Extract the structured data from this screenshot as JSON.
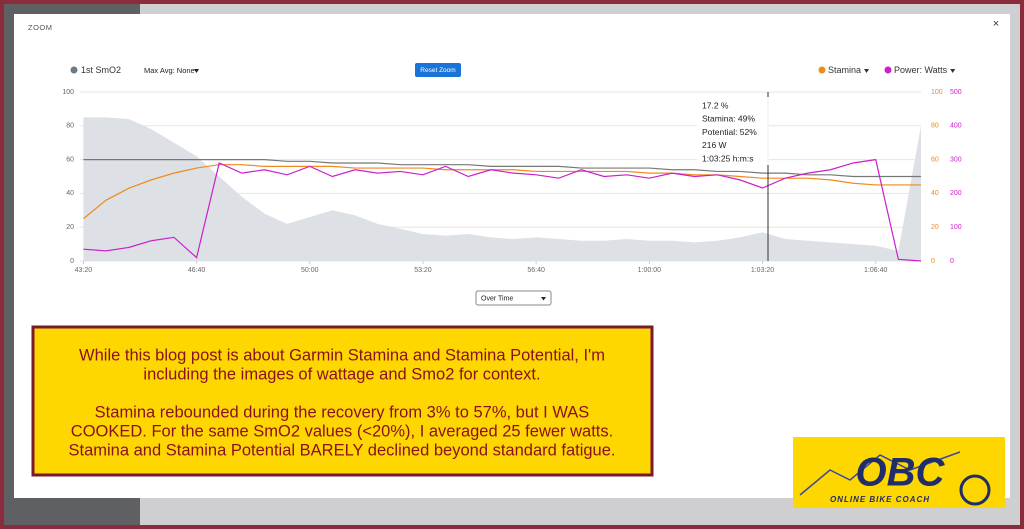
{
  "modal": {
    "title": "ZOOM",
    "close": "×",
    "reset_button": "Reset Zoom",
    "max_avg": "Max Avg: None",
    "dropdown": "Over Time"
  },
  "tooltip": [
    "17.2 %",
    "Stamina: 49%",
    "Potential: 52%",
    "216 W",
    "1:03:25 h:m:s"
  ],
  "chart_data": {
    "type": "line",
    "x": [
      2600,
      2640,
      2680,
      2720,
      2760,
      2800,
      2840,
      2880,
      2920,
      2960,
      3000,
      3040,
      3080,
      3120,
      3160,
      3200,
      3240,
      3280,
      3320,
      3360,
      3400,
      3440,
      3480,
      3520,
      3560,
      3600,
      3640,
      3680,
      3720,
      3760,
      3800,
      3840,
      3880,
      3920,
      3960,
      4000,
      4040,
      4080
    ],
    "xlim": [
      2594,
      4080
    ],
    "xticks": [
      {
        "value": 2600,
        "label": "43:20"
      },
      {
        "value": 2800,
        "label": "46:40"
      },
      {
        "value": 3000,
        "label": "50:00"
      },
      {
        "value": 3200,
        "label": "53:20"
      },
      {
        "value": 3400,
        "label": "56:40"
      },
      {
        "value": 3600,
        "label": "1:00:00"
      },
      {
        "value": 3800,
        "label": "1:03:20"
      },
      {
        "value": 4000,
        "label": "1:06:40"
      }
    ],
    "ylim": [
      0,
      100
    ],
    "yticks": [
      0,
      20,
      40,
      60,
      80,
      100
    ],
    "y2lim": [
      0,
      100
    ],
    "y2ticks": [
      0,
      20,
      40,
      60,
      80,
      100
    ],
    "y3lim": [
      0,
      500
    ],
    "y3ticks": [
      0,
      100,
      200,
      300,
      400,
      500
    ],
    "grid": true,
    "series": [
      {
        "name": "1st SmO2",
        "color": "#6c7a86",
        "fill": "#dde1e5",
        "axis": "y",
        "values": [
          85,
          85,
          84,
          78,
          70,
          62,
          50,
          38,
          28,
          22,
          26,
          30,
          27,
          22,
          19,
          16,
          15,
          16,
          14,
          13,
          14,
          13,
          12,
          12,
          13,
          12,
          12,
          11,
          12,
          14,
          17,
          13,
          12,
          11,
          10,
          9,
          6,
          80
        ]
      },
      {
        "name": "Stamina",
        "color": "#f08a1c",
        "axis": "y2",
        "values": [
          25,
          36,
          43,
          48,
          52,
          55,
          57,
          57,
          56,
          56,
          56,
          56,
          55,
          55,
          55,
          55,
          54,
          54,
          54,
          54,
          53,
          53,
          53,
          53,
          53,
          52,
          52,
          51,
          51,
          50,
          49,
          49,
          49,
          48,
          46,
          45,
          45,
          45
        ]
      },
      {
        "color": "#777777",
        "axis": "y2",
        "values": [
          60,
          60,
          60,
          60,
          60,
          60,
          60,
          60,
          60,
          59,
          59,
          58,
          58,
          58,
          57,
          57,
          57,
          57,
          56,
          56,
          56,
          56,
          55,
          55,
          55,
          55,
          54,
          54,
          53,
          53,
          52,
          52,
          51,
          51,
          50,
          50,
          50,
          50
        ]
      },
      {
        "name": "Power: Watts",
        "color": "#cc1fcc",
        "axis": "y3",
        "values": [
          35,
          30,
          40,
          60,
          70,
          10,
          290,
          260,
          270,
          255,
          280,
          250,
          270,
          260,
          265,
          255,
          280,
          250,
          270,
          260,
          255,
          245,
          270,
          250,
          255,
          245,
          260,
          250,
          255,
          240,
          216,
          245,
          260,
          270,
          290,
          300,
          5,
          0
        ]
      }
    ]
  },
  "annotation": {
    "paragraphs": [
      [
        "While this blog post is about Garmin Stamina and Stamina Potential, I'm",
        "including the images of wattage and Smo2 for context."
      ],
      [
        "Stamina rebounded during the recovery from 3% to 57%, but I WAS",
        "COOKED. For the same SmO2 values (<20%), I averaged 25 fewer watts.",
        "Stamina and Stamina Potential BARELY declined beyond standard fatigue."
      ]
    ]
  },
  "logo": {
    "name": "OBC",
    "tagline": "ONLINE BIKE COACH"
  }
}
